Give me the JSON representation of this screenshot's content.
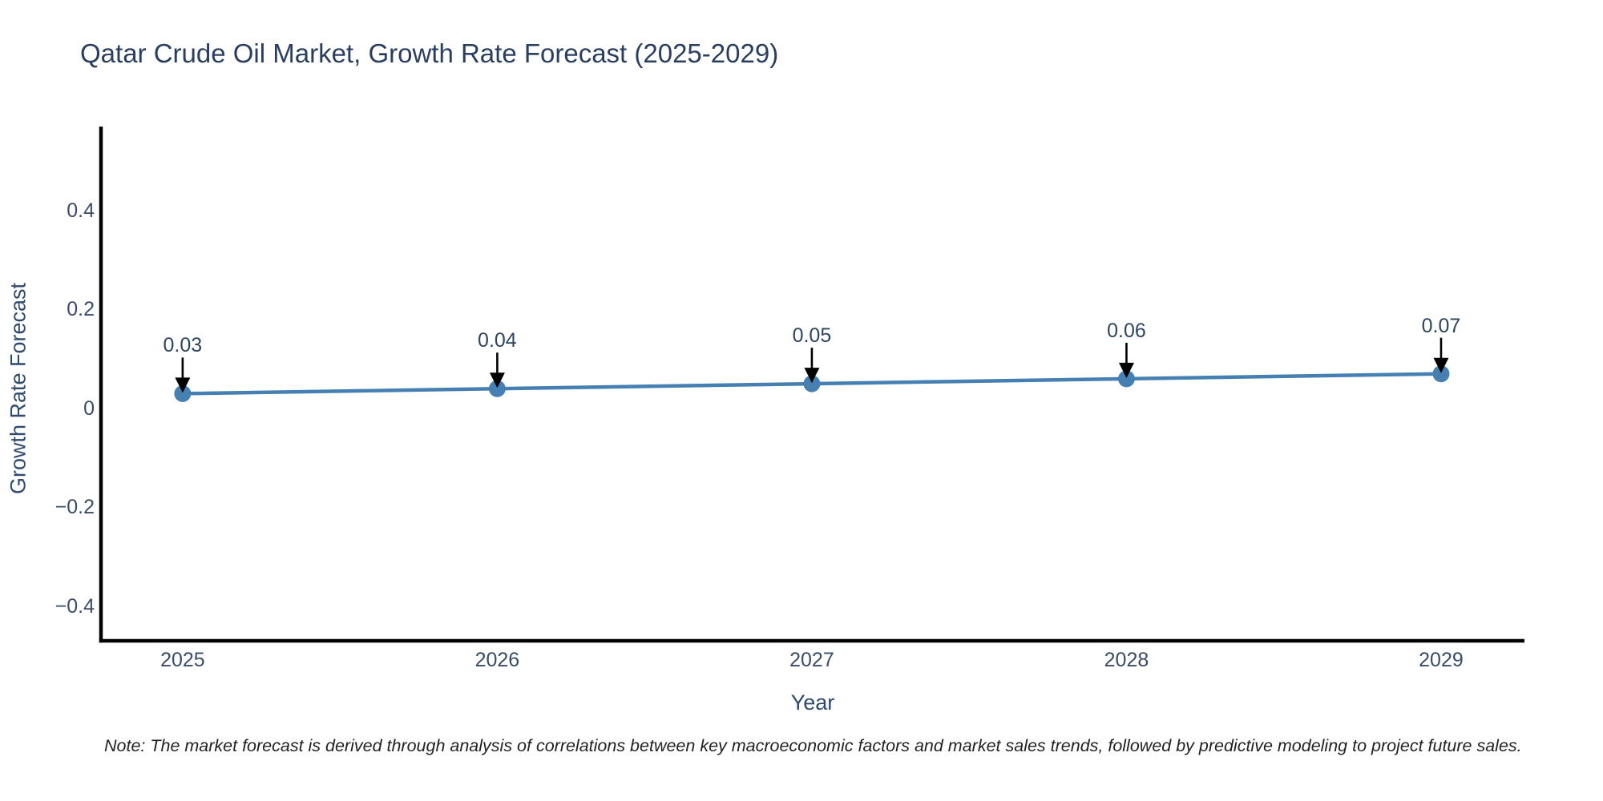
{
  "note": "Note: The market forecast is derived through analysis of correlations between key macroeconomic factors and market sales trends, followed by predictive modeling to project future sales.",
  "chart_data": {
    "type": "line",
    "title": "Qatar Crude Oil Market, Growth Rate Forecast (2025-2029)",
    "xlabel": "Year",
    "ylabel": "Growth Rate Forecast",
    "x": [
      2025,
      2026,
      2027,
      2028,
      2029
    ],
    "series": [
      {
        "name": "Growth Rate Forecast",
        "values": [
          0.03,
          0.04,
          0.05,
          0.06,
          0.07
        ]
      }
    ],
    "point_labels": [
      "0.03",
      "0.04",
      "0.05",
      "0.06",
      "0.07"
    ],
    "annotation_style": "black-arrow-down-to-point",
    "marker": "circle",
    "grid": false,
    "legend": "none",
    "xlim": [
      2024.743,
      2029.265
    ],
    "ylim": [
      -0.47,
      0.567
    ],
    "xticks": {
      "values": [
        2025,
        2026,
        2027,
        2028,
        2029
      ],
      "labels": [
        "2025",
        "2026",
        "2027",
        "2028",
        "2029"
      ]
    },
    "yticks": {
      "values": [
        0.4,
        0.2,
        0,
        -0.2,
        -0.4
      ],
      "labels": [
        "0.4",
        "0.2",
        "0",
        "−0.2",
        "−0.4"
      ]
    },
    "colors": {
      "line": "#4680b2",
      "marker": "#4680b2",
      "arrow": "#000000",
      "spine": "#000000",
      "title_text": "#2a3f5f",
      "tick_text": "#3a4c66",
      "axis_label_text": "#2e4a6e",
      "annotation_text": "#2e4560",
      "note_text": "#222222",
      "background": "#ffffff"
    }
  }
}
